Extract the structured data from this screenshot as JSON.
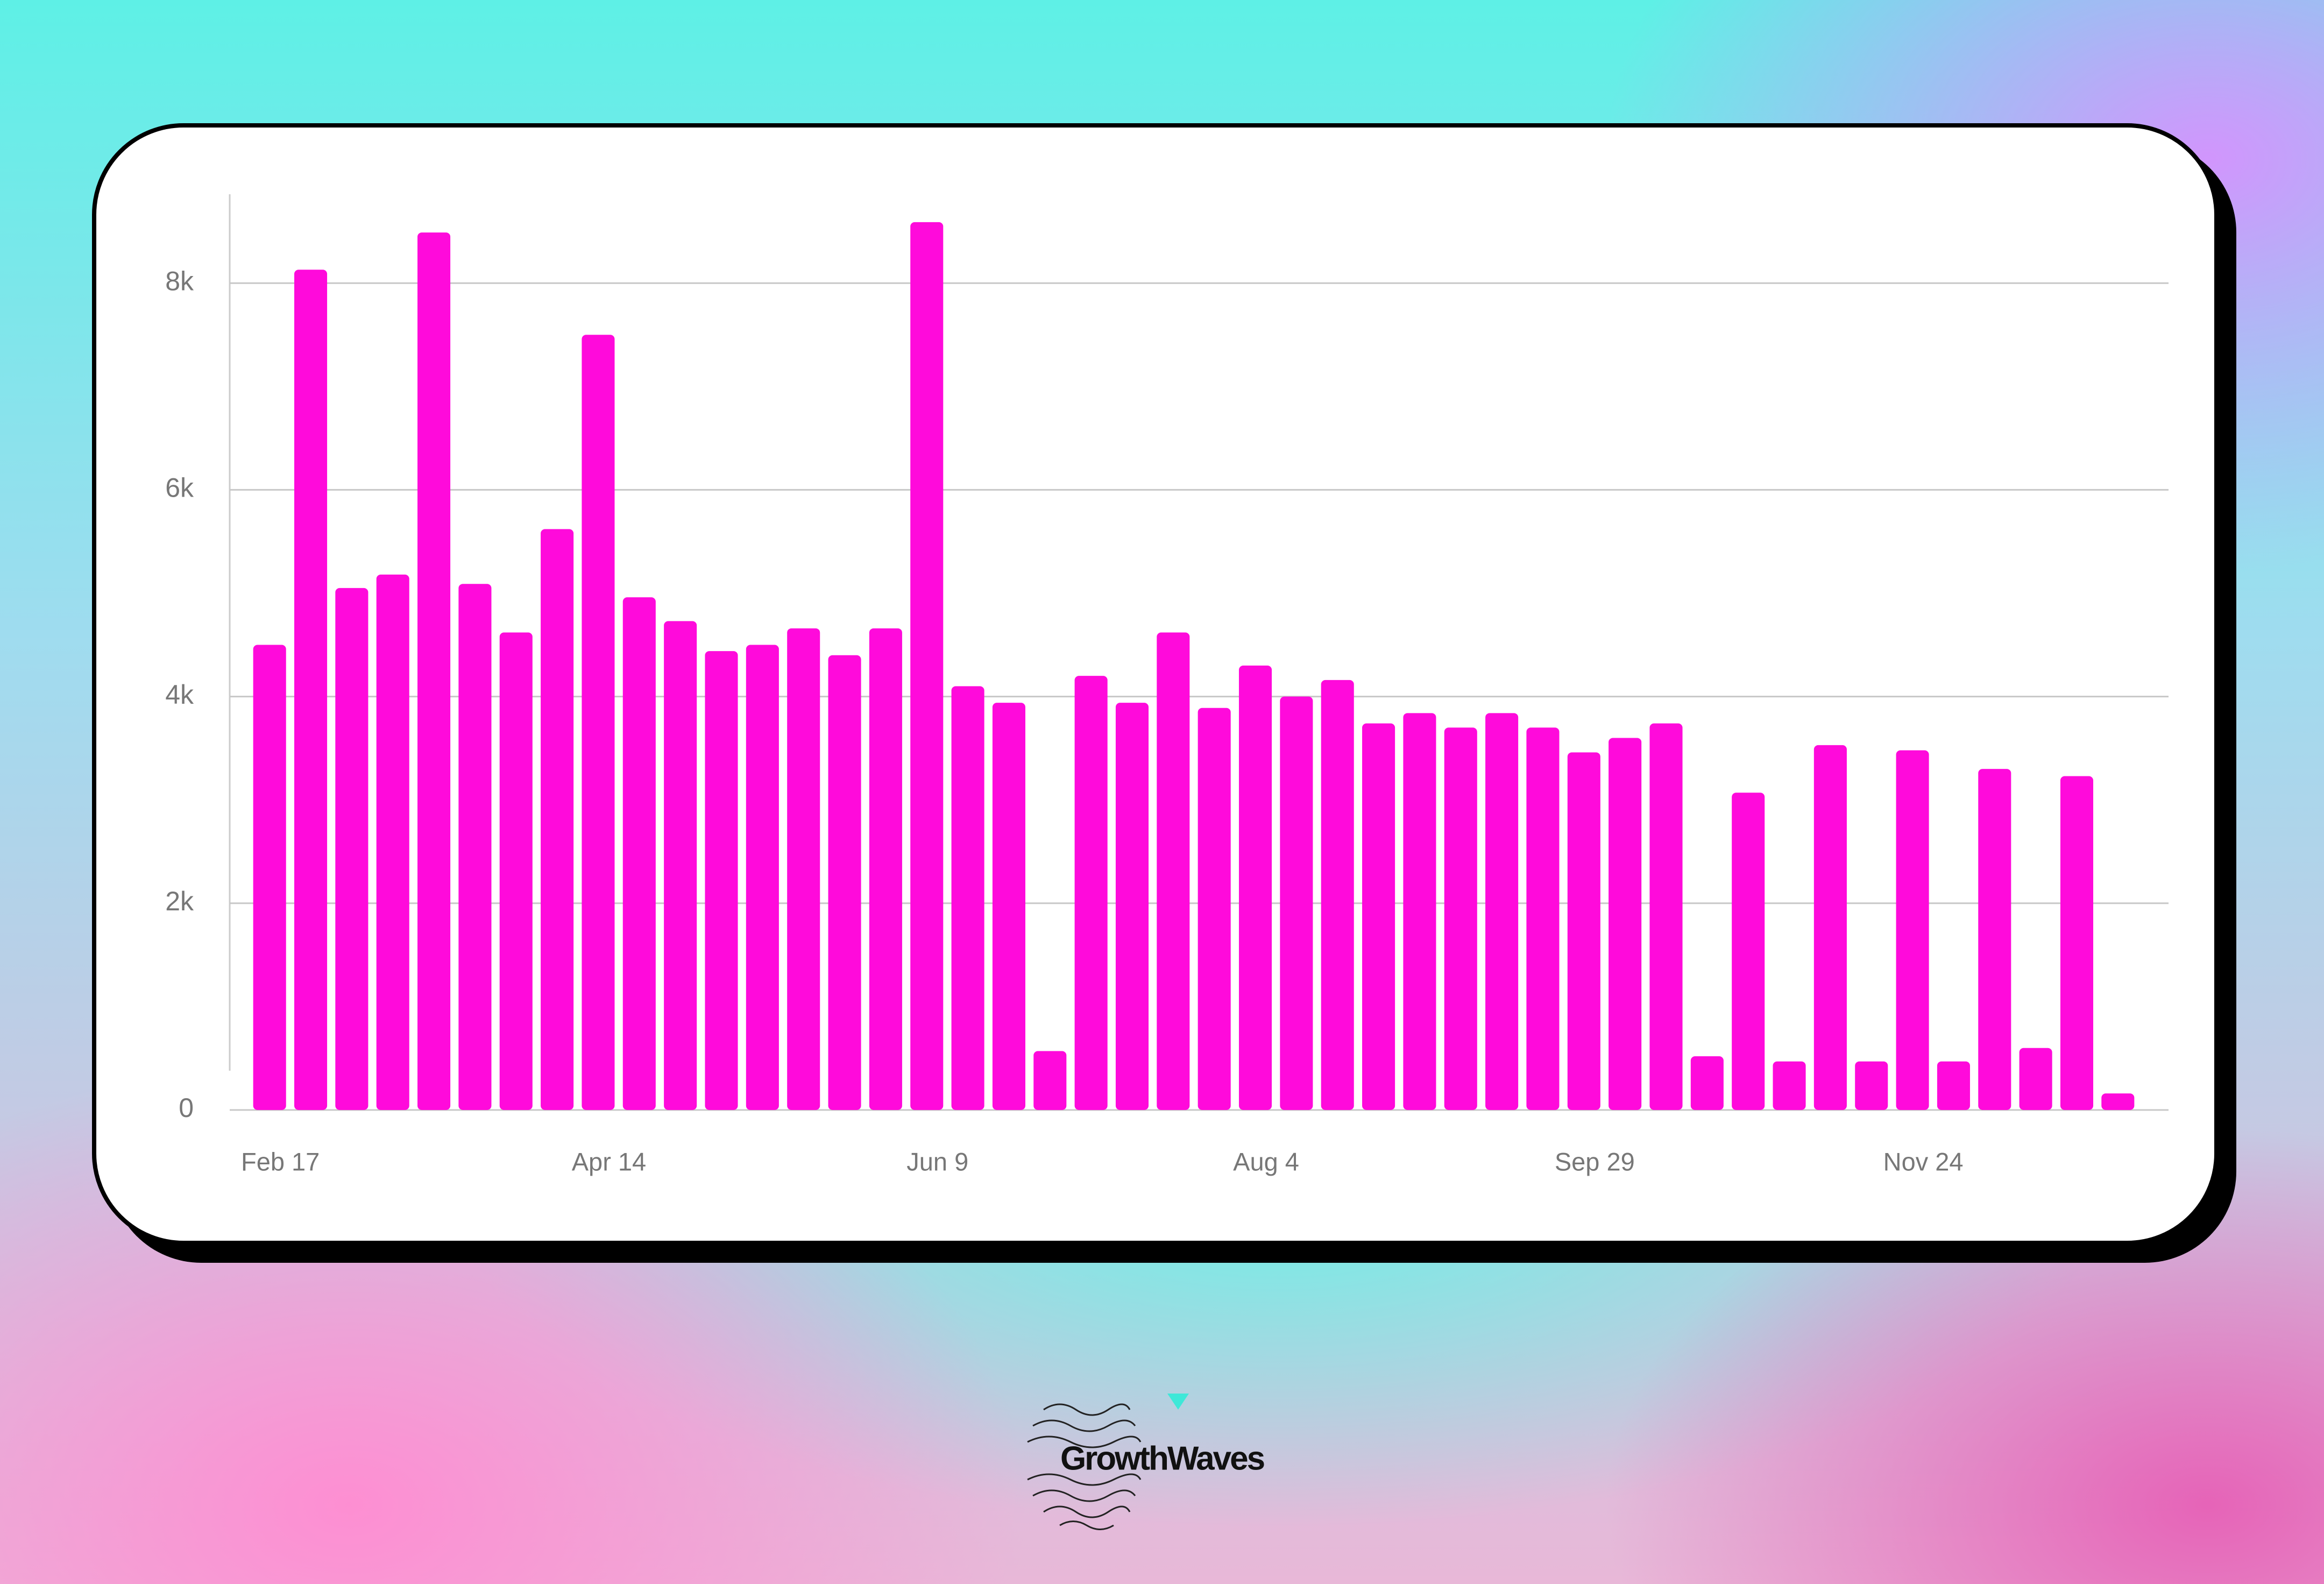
{
  "chart_data": {
    "type": "bar",
    "categories": [
      "Feb 17",
      null,
      null,
      null,
      null,
      null,
      null,
      null,
      "Apr 14",
      null,
      null,
      null,
      null,
      null,
      null,
      null,
      "Jun 9",
      null,
      null,
      null,
      null,
      null,
      null,
      null,
      "Aug 4",
      null,
      null,
      null,
      null,
      null,
      null,
      null,
      "Sep 29",
      null,
      null,
      null,
      null,
      null,
      null,
      null,
      "Nov 24",
      null,
      null,
      null,
      null,
      null
    ],
    "values": [
      4500,
      8130,
      5050,
      5180,
      8490,
      5090,
      4620,
      5620,
      7500,
      4960,
      4730,
      4440,
      4500,
      4660,
      4400,
      4660,
      8590,
      4100,
      3940,
      570,
      4200,
      3940,
      4620,
      3890,
      4300,
      4000,
      4160,
      3740,
      3840,
      3700,
      3840,
      3700,
      3460,
      3600,
      3740,
      520,
      3070,
      470,
      3530,
      470,
      3480,
      470,
      3300,
      600,
      3230,
      160
    ],
    "color": "#ff0adb",
    "ylim": [
      0,
      8860
    ],
    "yticks": [
      0,
      {
        "value": 2000,
        "label": "2k"
      },
      {
        "value": 4000,
        "label": "4k"
      },
      {
        "value": 6000,
        "label": "6k"
      },
      {
        "value": 8000,
        "label": "8k"
      }
    ],
    "grid": true
  },
  "logo": "GrowthWaves"
}
